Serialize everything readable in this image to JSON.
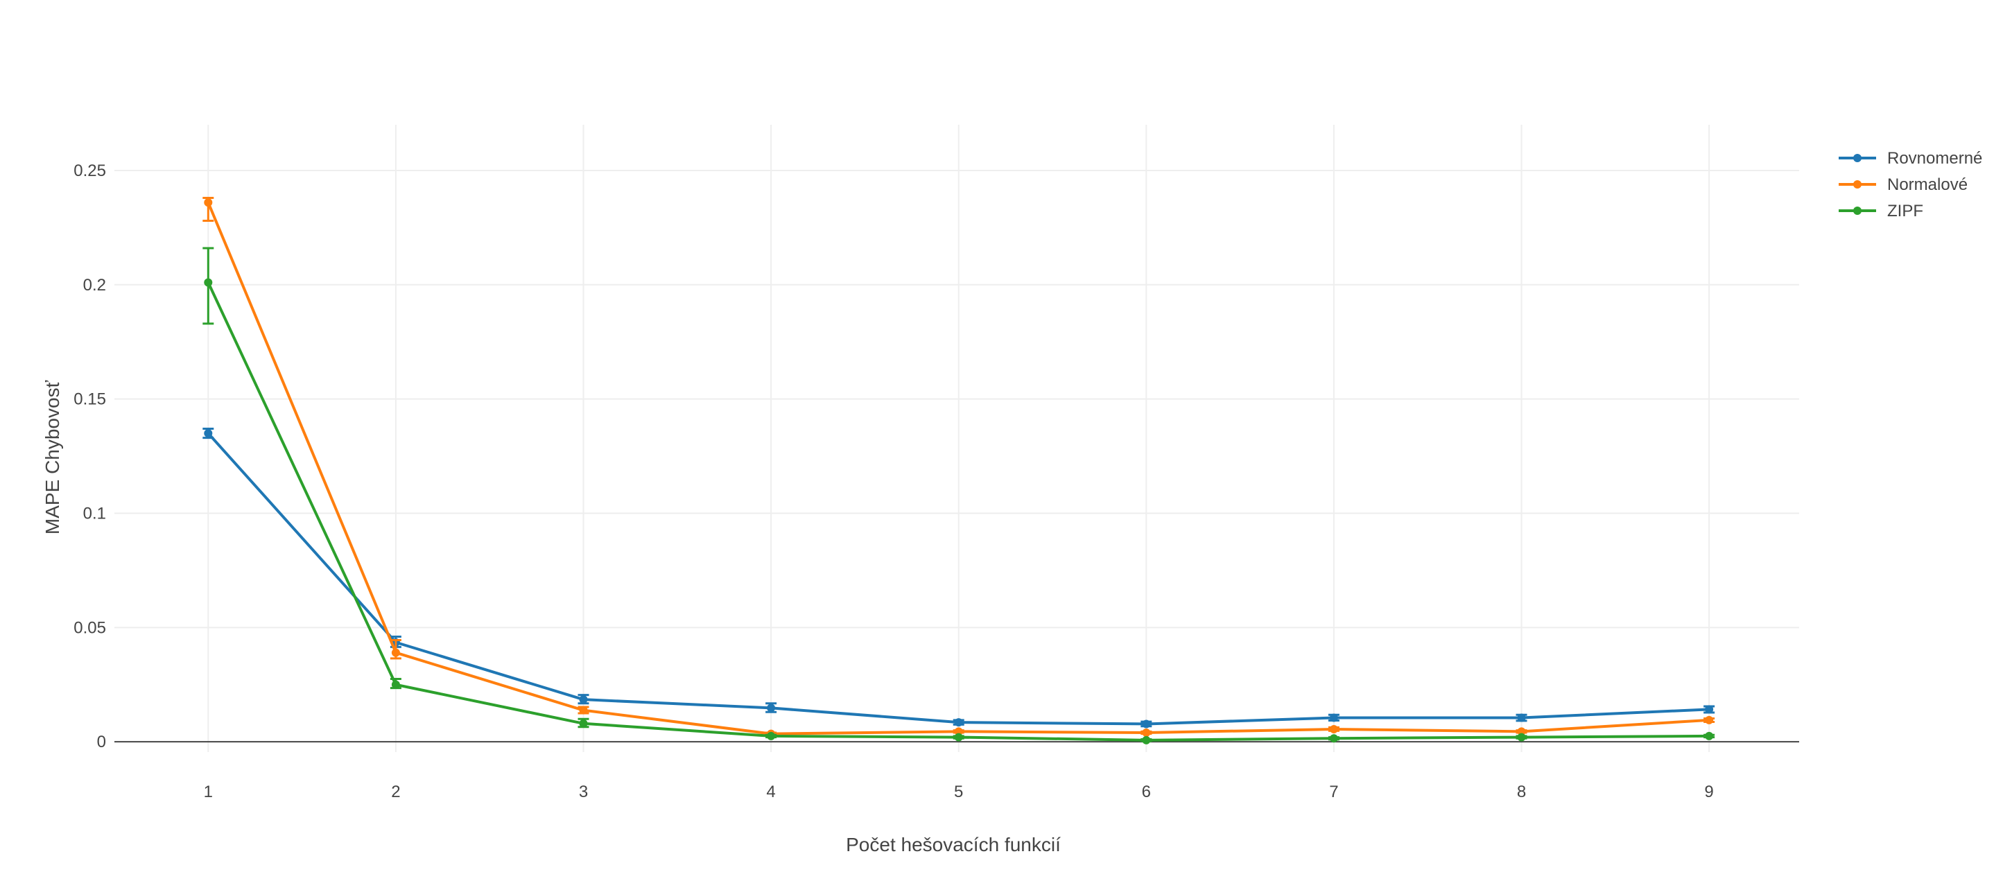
{
  "chart_data": {
    "type": "line",
    "title": "",
    "xlabel": "Počet hešovacích funkcií",
    "ylabel": "MAPE Chybovosť",
    "x": [
      1,
      2,
      3,
      4,
      5,
      6,
      7,
      8,
      9
    ],
    "xlim": [
      0.5,
      9.48
    ],
    "ylim": [
      -0.0045,
      0.27
    ],
    "x_ticks": [
      "1",
      "2",
      "3",
      "4",
      "5",
      "6",
      "7",
      "8",
      "9"
    ],
    "y_ticks": [
      {
        "value": 0,
        "label": "0"
      },
      {
        "value": 0.05,
        "label": "0.05"
      },
      {
        "value": 0.1,
        "label": "0.1"
      },
      {
        "value": 0.15,
        "label": "0.15"
      },
      {
        "value": 0.2,
        "label": "0.2"
      },
      {
        "value": 0.25,
        "label": "0.25"
      }
    ],
    "grid": true,
    "legend_position": "top-right",
    "series": [
      {
        "name": "Rovnomerné",
        "color": "#1f77b4",
        "values": [
          0.135,
          0.0435,
          0.0185,
          0.0148,
          0.0085,
          0.0078,
          0.0105,
          0.0105,
          0.0142
        ],
        "error_low": [
          0.133,
          0.0415,
          0.0168,
          0.013,
          0.0075,
          0.0068,
          0.0093,
          0.0092,
          0.0128
        ],
        "error_high": [
          0.137,
          0.046,
          0.0205,
          0.0168,
          0.0095,
          0.0088,
          0.0118,
          0.0118,
          0.0155
        ]
      },
      {
        "name": "Normalové",
        "color": "#ff7f0e",
        "values": [
          0.236,
          0.039,
          0.0138,
          0.0035,
          0.0045,
          0.004,
          0.0055,
          0.0045,
          0.0095
        ],
        "error_low": [
          0.228,
          0.0365,
          0.0125,
          0.003,
          0.004,
          0.0035,
          0.0048,
          0.004,
          0.0087
        ],
        "error_high": [
          0.238,
          0.0445,
          0.0152,
          0.004,
          0.005,
          0.0045,
          0.0063,
          0.005,
          0.0102
        ]
      },
      {
        "name": "ZIPF",
        "color": "#2ca02c",
        "values": [
          0.201,
          0.025,
          0.008,
          0.0025,
          0.002,
          0.0007,
          0.0015,
          0.002,
          0.0025
        ],
        "error_low": [
          0.183,
          0.0235,
          0.0065,
          0.002,
          0.0015,
          0.0003,
          0.001,
          0.0015,
          0.002
        ],
        "error_high": [
          0.216,
          0.0275,
          0.01,
          0.003,
          0.0025,
          0.0011,
          0.002,
          0.0025,
          0.003
        ]
      }
    ]
  }
}
